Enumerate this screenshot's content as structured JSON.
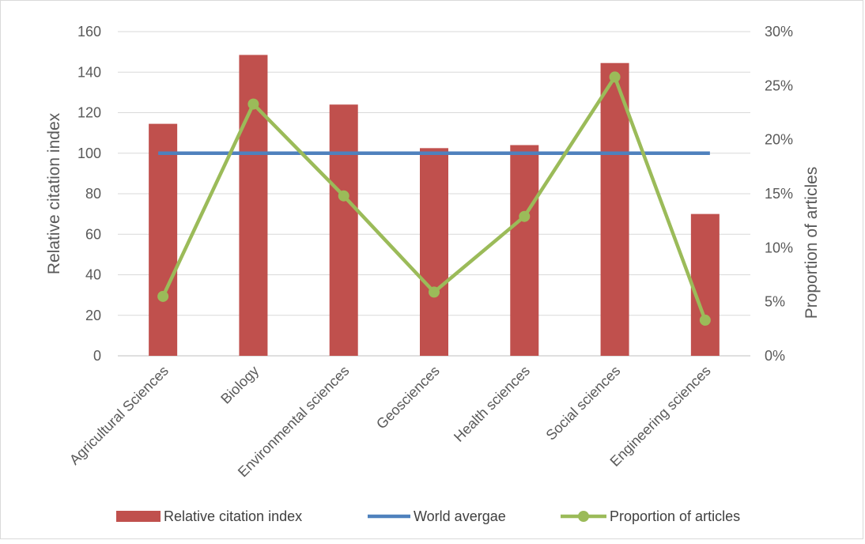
{
  "chart_data": {
    "type": "bar",
    "categories": [
      "Agricultural Sciences",
      "Biology",
      "Environmental sciences",
      "Geosciences",
      "Health sciences",
      "Social sciences",
      "Engineering sciences"
    ],
    "series": [
      {
        "name": "Relative citation index",
        "type": "bar",
        "axis": "left",
        "color": "#c0504d",
        "values": [
          114.5,
          148.5,
          124,
          102.5,
          104,
          144.5,
          70
        ]
      },
      {
        "name": "World avergae",
        "type": "line",
        "axis": "left",
        "color": "#4f81bd",
        "values": [
          100,
          100,
          100,
          100,
          100,
          100,
          100
        ]
      },
      {
        "name": "Proportion of articles",
        "type": "line",
        "axis": "right",
        "color": "#9bbb59",
        "marker": "circle",
        "values": [
          0.055,
          0.233,
          0.148,
          0.059,
          0.129,
          0.258,
          0.033
        ]
      }
    ],
    "ylabel": "Relative citation index",
    "y2label": "Proportion of articles",
    "ylim": [
      0,
      160
    ],
    "y_ticks": [
      "0",
      "20",
      "40",
      "60",
      "80",
      "100",
      "120",
      "140",
      "160"
    ],
    "y2lim": [
      0,
      0.3
    ],
    "y2_ticks": [
      "0%",
      "5%",
      "10%",
      "15%",
      "20%",
      "25%",
      "30%"
    ],
    "grid": true,
    "legend_position": "bottom"
  }
}
